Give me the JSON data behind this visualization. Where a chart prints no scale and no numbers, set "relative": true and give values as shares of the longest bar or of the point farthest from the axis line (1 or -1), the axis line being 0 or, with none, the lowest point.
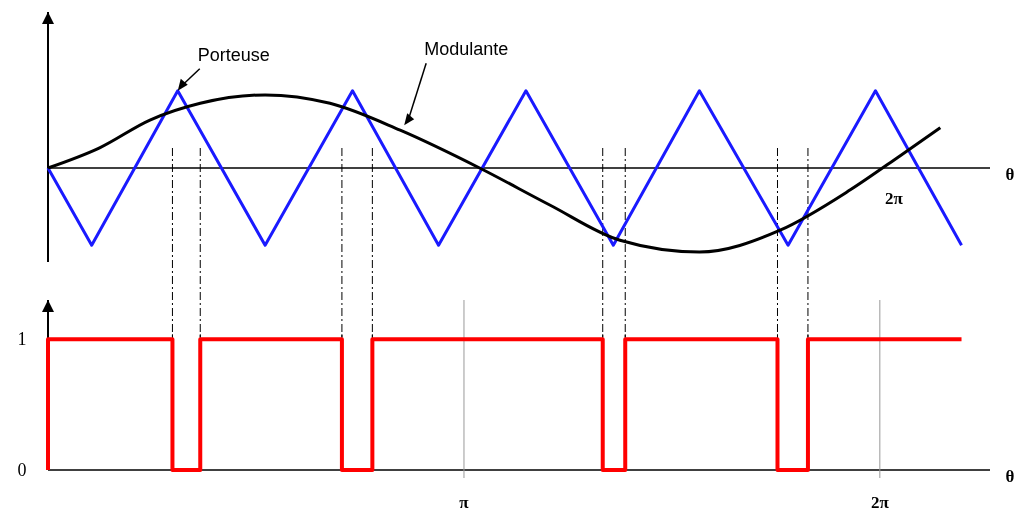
{
  "chart_data": [
    {
      "type": "line",
      "relative": true,
      "xlabel": "θ",
      "xlim": [
        0,
        7.1
      ],
      "series": [
        {
          "name": "Porteuse",
          "color": "#1a1aff",
          "x": [
            0,
            0.33,
            0.98,
            1.64,
            2.3,
            2.95,
            3.61,
            4.27,
            4.92,
            5.59,
            6.25,
            6.9
          ],
          "values": [
            0,
            -0.92,
            0.92,
            -0.92,
            0.92,
            -0.92,
            0.92,
            -0.92,
            0.92,
            -0.92,
            0.92,
            -0.92
          ]
        },
        {
          "name": "Modulante",
          "color": "#000000",
          "x": [
            0,
            0.39,
            0.77,
            1.15,
            1.64,
            2.13,
            2.66,
            3.26,
            3.79,
            4.32,
            4.92,
            5.53,
            6.06,
            6.44,
            6.74
          ],
          "values": [
            0,
            0.24,
            0.57,
            0.77,
            0.87,
            0.77,
            0.45,
            0,
            -0.44,
            -0.86,
            -1,
            -0.74,
            -0.26,
            0.15,
            0.48
          ]
        }
      ],
      "annotations": [
        "2π"
      ],
      "ref_lines": [
        {
          "axis": "x",
          "value": 0.94,
          "line_style": "dashed"
        },
        {
          "axis": "x",
          "value": 1.15,
          "line_style": "dashed"
        },
        {
          "axis": "x",
          "value": 2.22,
          "line_style": "dashed"
        },
        {
          "axis": "x",
          "value": 2.45,
          "line_style": "dashed"
        },
        {
          "axis": "x",
          "value": 4.19,
          "line_style": "dashed"
        },
        {
          "axis": "x",
          "value": 4.36,
          "line_style": "dashed"
        },
        {
          "axis": "x",
          "value": 5.51,
          "line_style": "dashed"
        },
        {
          "axis": "x",
          "value": 5.74,
          "line_style": "dashed"
        }
      ]
    },
    {
      "type": "step",
      "xlabel": "θ",
      "xlim": [
        0,
        7.1
      ],
      "ylim": [
        0,
        1.3
      ],
      "yticks": [
        0,
        1
      ],
      "xticks": [
        {
          "value": 3.142,
          "label": "π"
        },
        {
          "value": 6.283,
          "label": "2π"
        }
      ],
      "series": [
        {
          "color": "#ff0000",
          "x": [
            0,
            0,
            0.94,
            1.15,
            2.22,
            2.45,
            4.19,
            4.36,
            5.51,
            5.74,
            6.9
          ],
          "values": [
            0,
            1,
            0,
            1,
            0,
            1,
            0,
            1,
            0,
            1,
            1
          ]
        }
      ],
      "ref_lines": [
        {
          "axis": "x",
          "value": 0.94,
          "line_style": "dashed"
        },
        {
          "axis": "x",
          "value": 1.15,
          "line_style": "dashed"
        },
        {
          "axis": "x",
          "value": 2.22,
          "line_style": "dashed"
        },
        {
          "axis": "x",
          "value": 2.45,
          "line_style": "dashed"
        },
        {
          "axis": "x",
          "value": 4.19,
          "line_style": "dashed"
        },
        {
          "axis": "x",
          "value": 4.36,
          "line_style": "dashed"
        },
        {
          "axis": "x",
          "value": 5.51,
          "line_style": "dashed"
        },
        {
          "axis": "x",
          "value": 5.74,
          "line_style": "dashed"
        }
      ]
    }
  ]
}
